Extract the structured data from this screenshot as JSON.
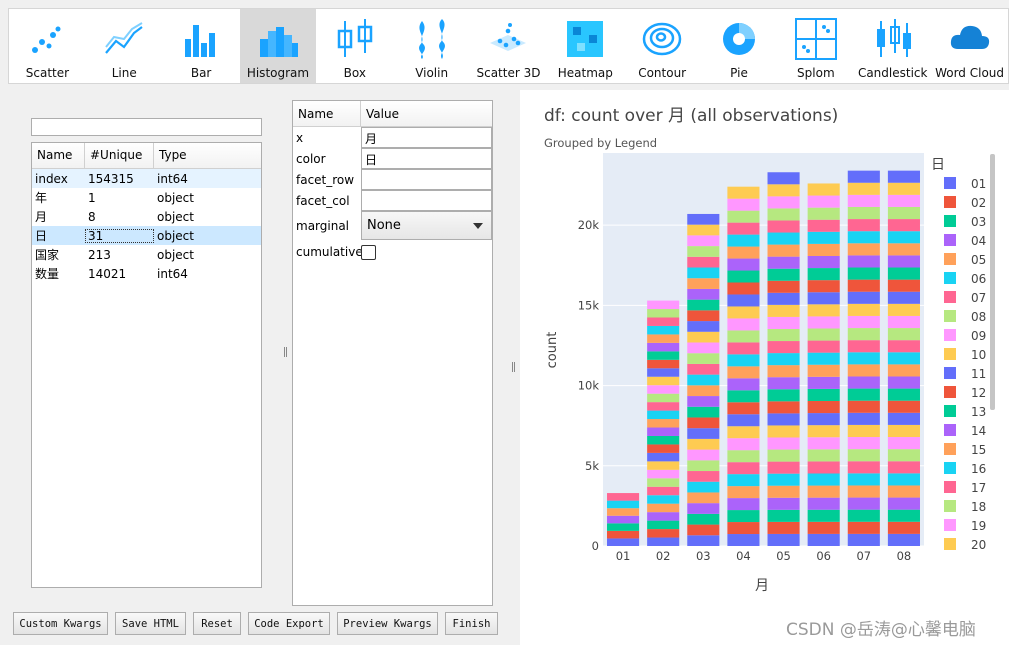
{
  "toolbar": {
    "items": [
      {
        "label": "Scatter",
        "icon": "scatter-icon"
      },
      {
        "label": "Line",
        "icon": "line-icon"
      },
      {
        "label": "Bar",
        "icon": "bar-icon"
      },
      {
        "label": "Histogram",
        "icon": "histogram-icon",
        "active": true
      },
      {
        "label": "Box",
        "icon": "box-icon"
      },
      {
        "label": "Violin",
        "icon": "violin-icon"
      },
      {
        "label": "Scatter 3D",
        "icon": "scatter3d-icon"
      },
      {
        "label": "Heatmap",
        "icon": "heatmap-icon"
      },
      {
        "label": "Contour",
        "icon": "contour-icon"
      },
      {
        "label": "Pie",
        "icon": "pie-icon"
      },
      {
        "label": "Splom",
        "icon": "splom-icon"
      },
      {
        "label": "Candlestick",
        "icon": "candlestick-icon"
      },
      {
        "label": "Word Cloud",
        "icon": "wordcloud-icon"
      }
    ],
    "accent": "#1aa3ff"
  },
  "columns_table": {
    "search_value": "",
    "headers": [
      "Name",
      "#Unique",
      "Type"
    ],
    "rows": [
      {
        "name": "index",
        "unique": "154315",
        "type": "int64"
      },
      {
        "name": "年",
        "unique": "1",
        "type": "object"
      },
      {
        "name": "月",
        "unique": "8",
        "type": "object"
      },
      {
        "name": "日",
        "unique": "31",
        "type": "object"
      },
      {
        "name": "国家",
        "unique": "213",
        "type": "object"
      },
      {
        "name": "数量",
        "unique": "14021",
        "type": "int64"
      }
    ]
  },
  "props": {
    "headers": [
      "Name",
      "Value"
    ],
    "x_label": "x",
    "x_value": "月",
    "color_label": "color",
    "color_value": "日",
    "facet_row_label": "facet_row",
    "facet_row_value": "",
    "facet_col_label": "facet_col",
    "facet_col_value": "",
    "marginal_label": "marginal",
    "marginal_value": "None",
    "cumulative_label": "cumulative"
  },
  "buttons": {
    "custom_kwargs": "Custom Kwargs",
    "save_html": "Save HTML",
    "reset": "Reset",
    "code_export": "Code Export",
    "preview_kwargs": "Preview Kwargs",
    "finish": "Finish"
  },
  "watermark": "CSDN @岳涛@心馨电脑",
  "chart_data": {
    "type": "bar",
    "stacked": true,
    "title": "df:  count over 月 (all observations)",
    "subtitle": "Grouped by Legend",
    "xlabel": "月",
    "ylabel": "count",
    "categories": [
      "01",
      "02",
      "03",
      "04",
      "05",
      "06",
      "07",
      "08"
    ],
    "totals": [
      3300,
      15300,
      20700,
      22400,
      23300,
      22600,
      23400,
      23400
    ],
    "segments_per_bar": [
      7,
      29,
      31,
      30,
      31,
      30,
      31,
      31
    ],
    "ylim": [
      0,
      24500
    ],
    "yticks": [
      {
        "v": 0,
        "l": "0"
      },
      {
        "v": 5000,
        "l": "5k"
      },
      {
        "v": 10000,
        "l": "10k"
      },
      {
        "v": 15000,
        "l": "15k"
      },
      {
        "v": 20000,
        "l": "20k"
      }
    ],
    "legend_title": "日",
    "legend_entries": [
      "01",
      "02",
      "03",
      "04",
      "05",
      "06",
      "07",
      "08",
      "09",
      "10",
      "11",
      "12",
      "13",
      "14",
      "15",
      "16",
      "17",
      "18",
      "19",
      "20"
    ],
    "palette": [
      "#636efa",
      "#ef553b",
      "#00cc96",
      "#ab63fa",
      "#ffa15a",
      "#19d3f3",
      "#ff6692",
      "#b6e880",
      "#ff97ff",
      "#fecb52"
    ],
    "plot_bg": "#e5ecf6",
    "legend_placement": "right",
    "grid": true
  }
}
